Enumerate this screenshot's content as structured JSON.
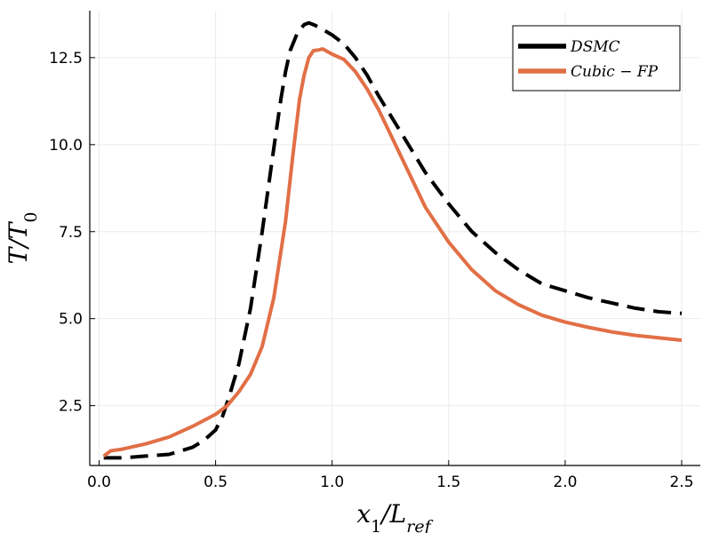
{
  "chart_data": {
    "type": "line",
    "xlabel": "x₁/L_ref",
    "ylabel": "T/T₀",
    "xlim": [
      -0.04,
      2.58
    ],
    "ylim": [
      0.78,
      13.85
    ],
    "xticks": [
      0.0,
      0.5,
      1.0,
      1.5,
      2.0,
      2.5
    ],
    "xtick_labels": [
      "0.0",
      "0.5",
      "1.0",
      "1.5",
      "2.0",
      "2.5"
    ],
    "yticks": [
      2.5,
      5.0,
      7.5,
      10.0,
      12.5
    ],
    "ytick_labels": [
      "2.5",
      "5.0",
      "7.5",
      "10.0",
      "12.5"
    ],
    "grid": true,
    "legend_position": "top-right",
    "series": [
      {
        "name": "DSMC",
        "color": "#000000",
        "style": "dashed",
        "x": [
          0.02,
          0.1,
          0.2,
          0.3,
          0.4,
          0.45,
          0.5,
          0.53,
          0.56,
          0.6,
          0.65,
          0.7,
          0.75,
          0.78,
          0.8,
          0.82,
          0.85,
          0.88,
          0.9,
          0.92,
          0.95,
          1.0,
          1.05,
          1.1,
          1.15,
          1.2,
          1.3,
          1.4,
          1.5,
          1.6,
          1.7,
          1.8,
          1.9,
          2.0,
          2.1,
          2.2,
          2.3,
          2.4,
          2.5
        ],
        "y": [
          1.0,
          1.0,
          1.05,
          1.1,
          1.3,
          1.5,
          1.8,
          2.2,
          2.8,
          3.7,
          5.3,
          7.5,
          9.9,
          11.3,
          12.1,
          12.7,
          13.2,
          13.45,
          13.5,
          13.45,
          13.35,
          13.15,
          12.9,
          12.5,
          12.0,
          11.4,
          10.3,
          9.2,
          8.3,
          7.5,
          6.9,
          6.4,
          6.0,
          5.8,
          5.6,
          5.45,
          5.3,
          5.2,
          5.15
        ]
      },
      {
        "name": "Cubic − FP",
        "color": "#e26f46",
        "style": "solid",
        "x": [
          0.02,
          0.05,
          0.1,
          0.2,
          0.3,
          0.4,
          0.5,
          0.55,
          0.6,
          0.65,
          0.7,
          0.75,
          0.8,
          0.83,
          0.86,
          0.88,
          0.9,
          0.92,
          0.94,
          0.96,
          1.0,
          1.05,
          1.1,
          1.15,
          1.2,
          1.3,
          1.4,
          1.5,
          1.6,
          1.7,
          1.8,
          1.9,
          2.0,
          2.1,
          2.2,
          2.3,
          2.4,
          2.5
        ],
        "y": [
          1.05,
          1.2,
          1.25,
          1.4,
          1.6,
          1.9,
          2.25,
          2.5,
          2.9,
          3.4,
          4.2,
          5.6,
          7.8,
          9.6,
          11.3,
          12.0,
          12.5,
          12.7,
          12.72,
          12.75,
          12.6,
          12.45,
          12.1,
          11.6,
          11.0,
          9.6,
          8.2,
          7.2,
          6.4,
          5.8,
          5.4,
          5.1,
          4.9,
          4.75,
          4.62,
          4.52,
          4.45,
          4.38
        ]
      }
    ]
  }
}
